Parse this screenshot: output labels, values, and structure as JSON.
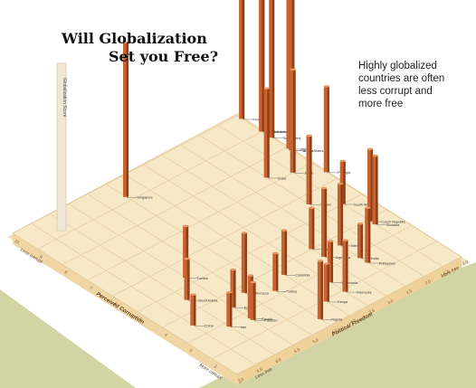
{
  "title": {
    "line1": "Will Globalization",
    "line2": "Set you Free?"
  },
  "annotation": [
    "Highly globalized",
    "countries are often",
    "less corrupt and",
    "more free"
  ],
  "colors": {
    "bar": "#c8622e",
    "bar_dark": "#8f3f18",
    "bar_light": "#e59a66",
    "floor": "#f7e8c8",
    "grid": "#e3c79a",
    "edge": "#f0d6a4",
    "ground": "#d2d4a4"
  },
  "chart_data": {
    "type": "bar",
    "style": "3d-isometric",
    "title": "Will Globalization Set you Free?",
    "z_axis_label": "Globalization Score",
    "left_axis": {
      "label": "Perceived Corruption",
      "low_end": "Less corrupt",
      "high_end": "More corrupt",
      "ticks": [
        "10",
        "9",
        "8",
        "7",
        "6",
        "5",
        "4",
        "3",
        "2",
        "1"
      ]
    },
    "right_axis": {
      "label": "Political Freedom",
      "low_end": "Less free",
      "high_end": "More free",
      "ticks": [
        "7.0",
        "6.5",
        "6.0",
        "5.5",
        "5.0",
        "4.5",
        "4.0",
        "3.5",
        "3.0",
        "2.5",
        "2.0",
        "1.5",
        "1.0"
      ]
    },
    "bars": [
      {
        "label": "Singapore",
        "corruption": 9.2,
        "freedom": 4.5,
        "globalization": 90
      },
      {
        "label": "Netherlands",
        "corruption": 9.0,
        "freedom": 1.0,
        "globalization": 115
      },
      {
        "label": "Finland",
        "corruption": 9.8,
        "freedom": 1.0,
        "globalization": 82
      },
      {
        "label": "United States",
        "corruption": 7.8,
        "freedom": 1.0,
        "globalization": 122
      },
      {
        "label": "Switzerland",
        "corruption": 8.6,
        "freedom": 1.0,
        "globalization": 100
      },
      {
        "label": "Ireland",
        "corruption": 7.9,
        "freedom": 1.0,
        "globalization": 115
      },
      {
        "label": "Sweden",
        "corruption": 9.0,
        "freedom": 1.0,
        "globalization": 125
      },
      {
        "label": "Austria",
        "corruption": 7.8,
        "freedom": 1.0,
        "globalization": 98
      },
      {
        "label": "Portugal",
        "corruption": 6.4,
        "freedom": 1.0,
        "globalization": 50
      },
      {
        "label": "Japan",
        "corruption": 7.0,
        "freedom": 1.5,
        "globalization": 60
      },
      {
        "label": "Israel",
        "corruption": 7.3,
        "freedom": 2.0,
        "globalization": 52
      },
      {
        "label": "South Africa",
        "corruption": 5.0,
        "freedom": 1.5,
        "globalization": 25
      },
      {
        "label": "Czech Republic",
        "corruption": 3.9,
        "freedom": 1.5,
        "globalization": 42
      },
      {
        "label": "Slovakia",
        "corruption": 3.7,
        "freedom": 1.5,
        "globalization": 40
      },
      {
        "label": "Taiwan",
        "corruption": 5.6,
        "freedom": 2.0,
        "globalization": 40
      },
      {
        "label": "Brazil",
        "corruption": 4.0,
        "freedom": 3.0,
        "globalization": 24
      },
      {
        "label": "Mexico",
        "corruption": 3.6,
        "freedom": 2.5,
        "globalization": 36
      },
      {
        "label": "Argentina",
        "corruption": 3.5,
        "freedom": 3.0,
        "globalization": 40
      },
      {
        "label": "Colombia",
        "corruption": 3.6,
        "freedom": 4.0,
        "globalization": 26
      },
      {
        "label": "Morocco",
        "corruption": 3.7,
        "freedom": 5.0,
        "globalization": 35
      },
      {
        "label": "Tunisia",
        "corruption": 5.3,
        "freedom": 5.5,
        "globalization": 30
      },
      {
        "label": "Saudi Arabia",
        "corruption": 4.5,
        "freedom": 6.0,
        "globalization": 24
      },
      {
        "label": "Egypt",
        "corruption": 3.4,
        "freedom": 5.5,
        "globalization": 22
      },
      {
        "label": "China",
        "corruption": 3.5,
        "freedom": 6.5,
        "globalization": 18
      },
      {
        "label": "Kenya",
        "corruption": 1.9,
        "freedom": 4.0,
        "globalization": 22
      },
      {
        "label": "Iran",
        "corruption": 2.8,
        "freedom": 6.0,
        "globalization": 20
      },
      {
        "label": "Russia",
        "corruption": 2.7,
        "freedom": 5.5,
        "globalization": 25
      },
      {
        "label": "Pakistan",
        "corruption": 2.6,
        "freedom": 5.5,
        "globalization": 22
      },
      {
        "label": "Venezuela",
        "corruption": 2.5,
        "freedom": 3.5,
        "globalization": 24
      },
      {
        "label": "Indonesia",
        "corruption": 1.9,
        "freedom": 3.5,
        "globalization": 30
      },
      {
        "label": "Nigeria",
        "corruption": 1.4,
        "freedom": 4.5,
        "globalization": 34
      },
      {
        "label": "Philippines",
        "corruption": 2.5,
        "freedom": 2.5,
        "globalization": 32
      },
      {
        "label": "India",
        "corruption": 2.8,
        "freedom": 2.5,
        "globalization": 20
      },
      {
        "label": "Turkey",
        "corruption": 3.2,
        "freedom": 4.5,
        "globalization": 22
      }
    ]
  }
}
